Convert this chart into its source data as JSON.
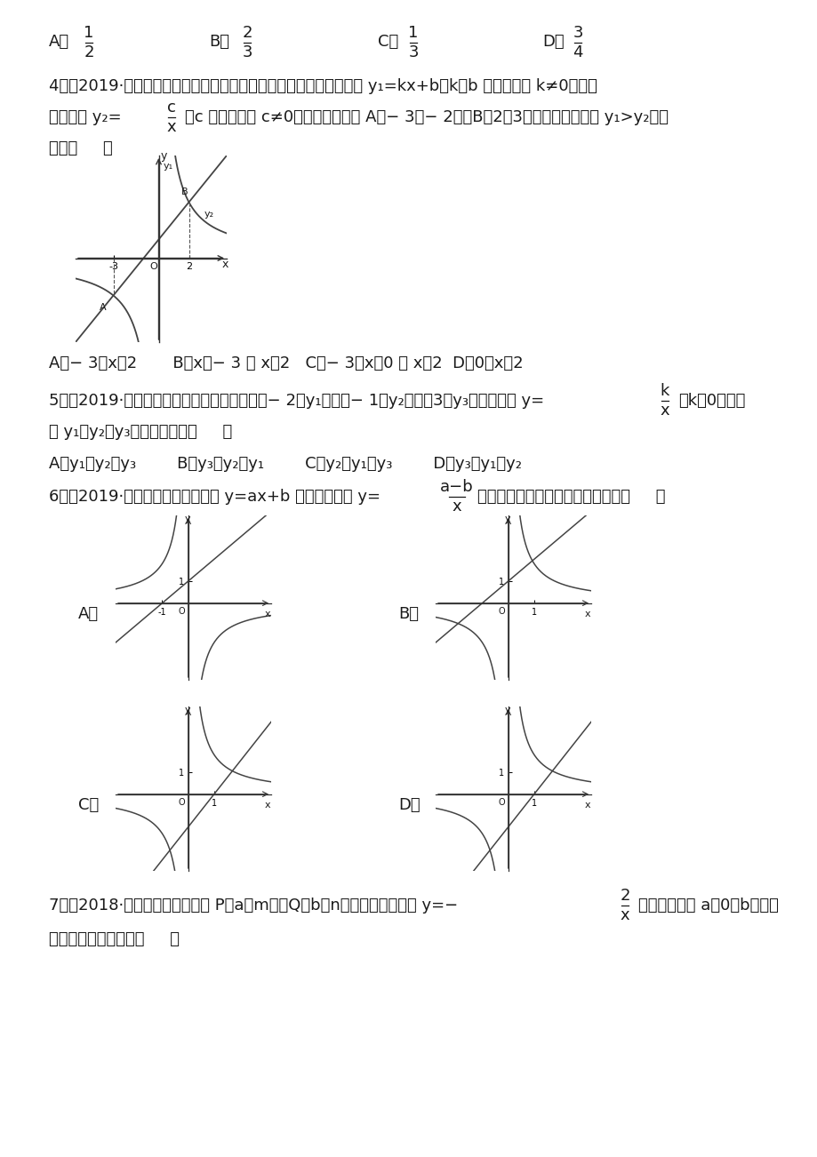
{
  "bg_color": "#ffffff",
  "figsize": [
    9.2,
    13.02
  ],
  "dpi": 100,
  "font_size_main": 13,
  "font_size_small": 11,
  "text_color": "#1a1a1a",
  "line_color": "#333333"
}
